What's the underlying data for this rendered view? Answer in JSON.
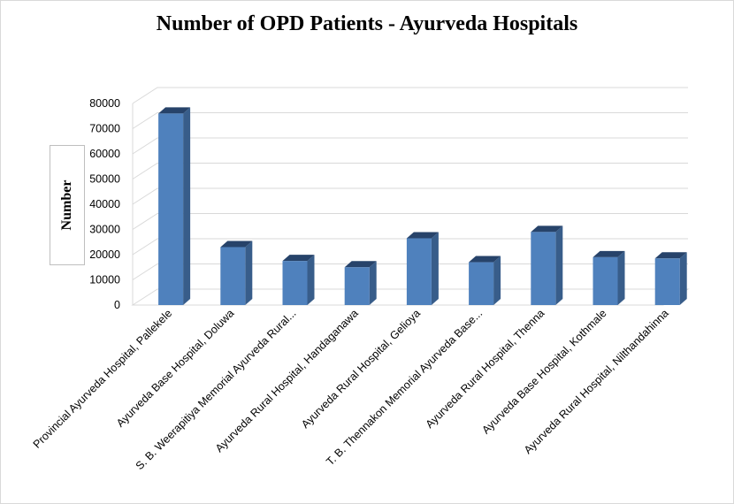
{
  "chart_data": {
    "type": "bar",
    "title": "Number of OPD Patients - Ayurveda Hospitals",
    "xlabel": "",
    "ylabel": "Number",
    "ylim": [
      0,
      80000
    ],
    "yticks": [
      0,
      10000,
      20000,
      30000,
      40000,
      50000,
      60000,
      70000,
      80000
    ],
    "grid": true,
    "categories": [
      "Provincial Ayurveda Hospital, Pallekele",
      "Ayurveda Base Hospital, Doluwa",
      "S. B. Weerapitiya Memorial Ayurveda Rural...",
      "Ayurveda Rural Hospital, Handaganawa",
      "Ayurveda Rural Hospital, Gelioya",
      "T. B. Thennakon Memorial Ayurveda Base...",
      "Ayurveda Rural Hospital, Thenna",
      "Ayurveda Base Hospital, Kothmale",
      "Ayurveda Rural Hospital, Nilthandahinna"
    ],
    "values": [
      76000,
      23000,
      17500,
      15000,
      26500,
      17000,
      29000,
      19000,
      18500
    ],
    "colors": {
      "bar_front": "#4f81bd",
      "bar_side": "#385d8a",
      "bar_top": "#27436a",
      "grid": "#d9d9d9",
      "axis": "#d9d9d9"
    }
  }
}
